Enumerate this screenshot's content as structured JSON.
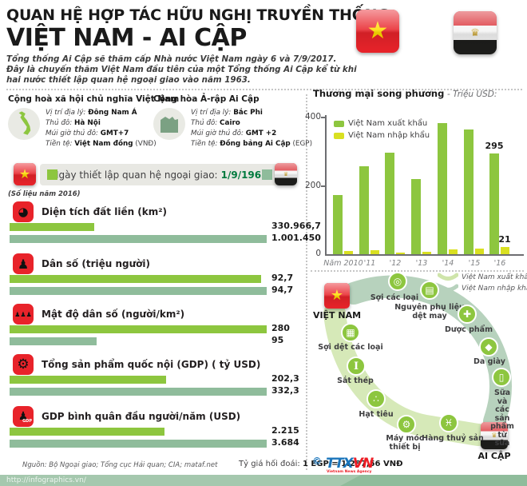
{
  "header": {
    "kicker": "QUAN HỆ HỢP TÁC HỮU NGHỊ TRUYỀN THỐNG",
    "title": "VIỆT NAM - AI CẬP",
    "subtitle": "Tổng thống Ai Cập sẽ thăm cấp Nhà nước Việt Nam ngày 6 và 7/9/2017.\nĐây là chuyến thăm Việt Nam đầu tiên của một Tổng thống Ai Cập kể từ khi\nhai nước thiết lập quan hệ ngoại giao vào năm 1963."
  },
  "countries": [
    {
      "name": "Cộng hoà xã hội chủ nghĩa Việt Nam",
      "facts": [
        {
          "label": "Vị trí địa lý: ",
          "value": "Đông Nam Á",
          "note": ""
        },
        {
          "label": "Thủ đô: ",
          "value": "Hà Nội",
          "note": ""
        },
        {
          "label": "Múi giờ thủ đô: ",
          "value": "GMT+7",
          "note": ""
        },
        {
          "label": "Tiền tệ: ",
          "value": "Việt Nam đồng",
          "note": " (VNĐ)"
        }
      ]
    },
    {
      "name": "Cộng hòa Ả-rập Ai Cập",
      "facts": [
        {
          "label": "Vị trí địa lý: ",
          "value": "Bắc Phi",
          "note": ""
        },
        {
          "label": "Thủ đô: ",
          "value": "Cairo",
          "note": ""
        },
        {
          "label": "Múi giờ thủ đô: ",
          "value": "GMT +2",
          "note": ""
        },
        {
          "label": "Tiền tệ: ",
          "value": "Đồng bảng Ai Cập",
          "note": " (EGP)"
        }
      ]
    }
  ],
  "banner": {
    "label": "Ngày thiết lập quan hệ ngoại giao: ",
    "date": "1/9/1963"
  },
  "note": "(Số liệu năm 2016)",
  "stats": [
    {
      "icon": "land-area-icon",
      "glyph": "◕",
      "gsize": 15,
      "label": "Diện tích đất liền (km²)",
      "vn": "330.966,7",
      "eg": "1.001.450",
      "vn_num": 330966.7,
      "eg_num": 1001450
    },
    {
      "icon": "population-icon",
      "glyph": "♟",
      "gsize": 16,
      "label": "Dân số (triệu người)",
      "vn": "92,7",
      "eg": "94,7",
      "vn_num": 92.7,
      "eg_num": 94.7
    },
    {
      "icon": "population-density-icon",
      "glyph": "♟♟♟",
      "gsize": 8,
      "label": "Mật độ dân số (người/km²)",
      "vn": "280",
      "eg": "95",
      "vn_num": 280,
      "eg_num": 95
    },
    {
      "icon": "gdp-icon",
      "glyph": "⚙",
      "gsize": 17,
      "label": "Tổng sản phẩm quốc nội (GDP) ( tỷ USD)",
      "vn": "202,3",
      "eg": "332,3",
      "vn_num": 202.3,
      "eg_num": 332.3
    },
    {
      "icon": "gdp-per-capita-icon",
      "glyph": "♟",
      "gsize": 14,
      "badge": "GDP",
      "label": "GDP bình quân đầu người/năm (USD)",
      "vn": "2.215",
      "eg": "3.684",
      "vn_num": 2215,
      "eg_num": 3684
    }
  ],
  "chart_data": {
    "type": "bar",
    "title": "Thương mại song phương",
    "unit_note": "- Triệu USD:",
    "categories": [
      "Năm 2010",
      "'11",
      "'12",
      "'13",
      "'14",
      "'15",
      "'16"
    ],
    "series": [
      {
        "name": "Việt Nam xuất khẩu",
        "color": "#8dc63f",
        "values": [
          173,
          257,
          298,
          221,
          383,
          365,
          295
        ],
        "point_labels": [
          "",
          "",
          "",
          "",
          "",
          "",
          "295"
        ]
      },
      {
        "name": "Việt Nam nhập khẩu",
        "color": "#d9e021",
        "values": [
          9,
          12,
          5,
          7,
          14,
          16,
          21
        ],
        "point_labels": [
          "",
          "",
          "",
          "",
          "",
          "",
          "21"
        ]
      }
    ],
    "ylim": [
      0,
      400
    ],
    "yticks": [
      0,
      200,
      400
    ],
    "legend_position": "top-left",
    "grid": false
  },
  "flow": {
    "vn_label": "VIỆT NAM",
    "eg_label": "AI CẬP",
    "legend": [
      {
        "label": "Việt Nam xuất khẩu",
        "color": "#cfe5ab"
      },
      {
        "label": "Việt Nam nhập khẩu",
        "color": "#b7d2bd"
      }
    ],
    "imports": [
      {
        "label": "Sợi các loại",
        "icon": "yarn-icon",
        "glyph": "◎"
      },
      {
        "label": "Nguyên phụ liệu\ndệt may",
        "icon": "textile-materials-icon",
        "glyph": "▤"
      },
      {
        "label": "Dược phẩm",
        "icon": "pharmaceuticals-icon",
        "glyph": "✚"
      },
      {
        "label": "Da giày",
        "icon": "leather-footwear-icon",
        "glyph": "◆"
      },
      {
        "label": "Sữa và các\nsản phẩm\ntừ sữa",
        "icon": "milk-products-icon",
        "glyph": "▯"
      }
    ],
    "exports": [
      {
        "label": "Sợi dệt các loại",
        "icon": "textile-yarn-icon",
        "glyph": "▦"
      },
      {
        "label": "Sắt thép",
        "icon": "steel-icon",
        "glyph": "I"
      },
      {
        "label": "Hạt tiêu",
        "icon": "pepper-icon",
        "glyph": "∴"
      },
      {
        "label": "Máy móc\nthiết bị",
        "icon": "machinery-icon",
        "glyph": "⚙"
      },
      {
        "label": "Hàng thuỷ sản",
        "icon": "seafood-icon",
        "glyph": "♓"
      }
    ]
  },
  "footer": {
    "source": "Nguồn: Bộ Ngoại giao; Tổng cục Hải quan; CIA; mataf.net",
    "exchange_label": "Tỷ giá hối đoái: ",
    "exchange_value": "1 EGP = 1.287,56 VNĐ",
    "url": "http://infographics.vn/",
    "agency_copyright": "©",
    "agency_ttx": "TTX",
    "agency_vn": "VN",
    "agency_sub": "Vietnam News Agency"
  },
  "colors": {
    "vietnam_green": "#8dc63f",
    "egypt_sage": "#8fbc9b",
    "import_yellow": "#d9e021",
    "accent_red": "#e8232a",
    "date_green": "#007a3e"
  }
}
